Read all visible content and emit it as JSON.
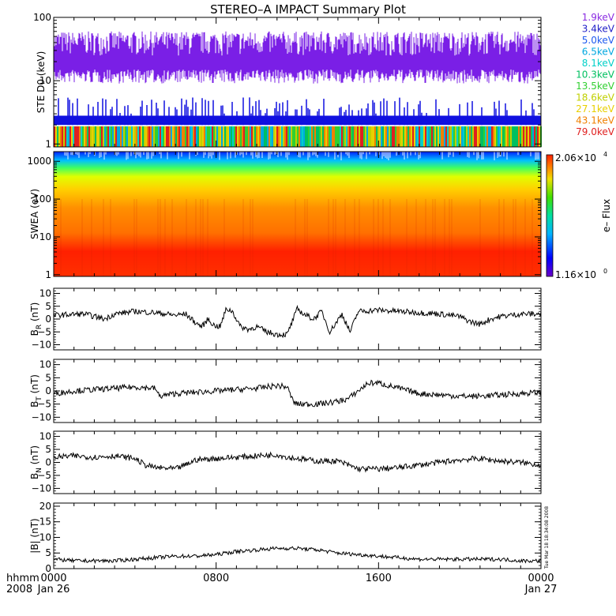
{
  "title": "STEREO–A IMPACT Summary Plot",
  "timestamp": "Tue Mar 18 18:34:08 2008",
  "time_axis": {
    "left_label_1": "hhmm",
    "left_label_2": "2008",
    "ticks": [
      {
        "t": 0,
        "label": "0000",
        "sublabel": "Jan 26"
      },
      {
        "t": 8,
        "label": "0800",
        "sublabel": ""
      },
      {
        "t": 16,
        "label": "1600",
        "sublabel": ""
      },
      {
        "t": 24,
        "label": "0000",
        "sublabel": "Jan 27"
      }
    ]
  },
  "colors": {
    "ste_main": "#7a1fe6",
    "ste_blue": "#1010e0",
    "line": "#000000"
  },
  "chart_data": [
    {
      "panel": "ste",
      "type": "line",
      "ylabel": "STE D0 (keV)",
      "yscale": "log",
      "ylim": [
        0.9,
        100
      ],
      "yticks": [
        {
          "v": 1,
          "label": "1"
        },
        {
          "v": 10,
          "label": "10"
        },
        {
          "v": 100,
          "label": "100"
        }
      ],
      "legend_placement": "right",
      "series": [
        {
          "name": "1.9keV",
          "color": "#8a2be2"
        },
        {
          "name": "3.4keV",
          "color": "#2020c8"
        },
        {
          "name": "5.0keV",
          "color": "#1e5af0"
        },
        {
          "name": "6.5keV",
          "color": "#00a8e0"
        },
        {
          "name": "8.1keV",
          "color": "#00d0c8"
        },
        {
          "name": "10.3keV",
          "color": "#00c060"
        },
        {
          "name": "13.5keV",
          "color": "#30d030"
        },
        {
          "name": "18.6keV",
          "color": "#c0d000"
        },
        {
          "name": "27.1keV",
          "color": "#e8d000"
        },
        {
          "name": "43.1keV",
          "color": "#f08000"
        },
        {
          "name": "79.0keV",
          "color": "#e02020"
        }
      ]
    },
    {
      "panel": "swea",
      "type": "heatmap",
      "ylabel": "SWEA (eV)",
      "yscale": "log",
      "ylim": [
        0.9,
        1800
      ],
      "yticks": [
        {
          "v": 1,
          "label": "1"
        },
        {
          "v": 10,
          "label": "10"
        },
        {
          "v": 100,
          "label": "100"
        },
        {
          "v": 1000,
          "label": "1000"
        }
      ],
      "colorbar": {
        "label": "e– Flux",
        "max_label": "2.06×10",
        "max_exp": "4",
        "min_label": "1.16×10",
        "min_exp": "0"
      }
    },
    {
      "panel": "br",
      "type": "line",
      "ylabel": "B",
      "ylabel_sub": "R",
      "yunit": " (nT)",
      "ylim": [
        -12,
        12
      ],
      "yticks": [
        {
          "v": 10,
          "label": "10"
        },
        {
          "v": 5,
          "label": "5"
        },
        {
          "v": 0,
          "label": "0"
        },
        {
          "v": -5,
          "label": "−5"
        },
        {
          "v": -10,
          "label": "−10"
        }
      ],
      "points": [
        [
          0,
          1.5
        ],
        [
          1.5,
          2
        ],
        [
          2.5,
          0
        ],
        [
          3,
          2
        ],
        [
          4,
          3
        ],
        [
          5,
          2.5
        ],
        [
          6,
          1.5
        ],
        [
          6.5,
          2
        ],
        [
          7,
          -1.5
        ],
        [
          7.3,
          -3
        ],
        [
          7.6,
          0
        ],
        [
          7.9,
          -2.5
        ],
        [
          8.2,
          -3
        ],
        [
          8.5,
          4
        ],
        [
          8.8,
          3
        ],
        [
          9.2,
          -3
        ],
        [
          9.6,
          -4
        ],
        [
          10,
          -3
        ],
        [
          10.5,
          -5
        ],
        [
          11,
          -6
        ],
        [
          11.5,
          -6
        ],
        [
          11.7,
          -2
        ],
        [
          12,
          4
        ],
        [
          12.3,
          2
        ],
        [
          12.8,
          0
        ],
        [
          13.2,
          3
        ],
        [
          13.6,
          -5
        ],
        [
          14.2,
          2
        ],
        [
          14.6,
          -5
        ],
        [
          15,
          3
        ],
        [
          16,
          3.5
        ],
        [
          17,
          3
        ],
        [
          18,
          2.5
        ],
        [
          19,
          2
        ],
        [
          20,
          1
        ],
        [
          20.5,
          -1
        ],
        [
          21,
          -2
        ],
        [
          21.5,
          0
        ],
        [
          22,
          1
        ],
        [
          23,
          2
        ],
        [
          24,
          2
        ]
      ]
    },
    {
      "panel": "bt",
      "type": "line",
      "ylabel": "B",
      "ylabel_sub": "T",
      "yunit": " (nT)",
      "ylim": [
        -12,
        12
      ],
      "yticks": [
        {
          "v": 10,
          "label": "10"
        },
        {
          "v": 5,
          "label": "5"
        },
        {
          "v": 0,
          "label": "0"
        },
        {
          "v": -5,
          "label": "−5"
        },
        {
          "v": -10,
          "label": "−10"
        }
      ],
      "points": [
        [
          0,
          -1
        ],
        [
          1,
          0
        ],
        [
          2,
          0.5
        ],
        [
          3,
          1
        ],
        [
          4,
          1.5
        ],
        [
          5,
          1
        ],
        [
          5.2,
          -2
        ],
        [
          6,
          -1
        ],
        [
          7,
          -0.5
        ],
        [
          8,
          0
        ],
        [
          9,
          0.5
        ],
        [
          10,
          1
        ],
        [
          11,
          2
        ],
        [
          11.5,
          1.5
        ],
        [
          11.8,
          -4
        ],
        [
          12,
          -5
        ],
        [
          13,
          -5
        ],
        [
          14,
          -4
        ],
        [
          14.5,
          -3
        ],
        [
          15,
          0
        ],
        [
          15.5,
          3
        ],
        [
          16,
          3
        ],
        [
          16.5,
          2
        ],
        [
          17,
          1
        ],
        [
          17.5,
          0
        ],
        [
          18,
          -1
        ],
        [
          19,
          -1.5
        ],
        [
          20,
          -2
        ],
        [
          21,
          -2
        ],
        [
          22,
          -1.5
        ],
        [
          23,
          -1
        ],
        [
          24,
          -0.5
        ]
      ]
    },
    {
      "panel": "bn",
      "type": "line",
      "ylabel": "B",
      "ylabel_sub": "N",
      "yunit": " (nT)",
      "ylim": [
        -12,
        12
      ],
      "yticks": [
        {
          "v": 10,
          "label": "10"
        },
        {
          "v": 5,
          "label": "5"
        },
        {
          "v": 0,
          "label": "0"
        },
        {
          "v": -5,
          "label": "−5"
        },
        {
          "v": -10,
          "label": "−10"
        }
      ],
      "points": [
        [
          0,
          2
        ],
        [
          1,
          2.5
        ],
        [
          2,
          2
        ],
        [
          3,
          2.5
        ],
        [
          4,
          1.5
        ],
        [
          4.5,
          -1
        ],
        [
          5,
          -2
        ],
        [
          6,
          -2.5
        ],
        [
          6.5,
          -1
        ],
        [
          7,
          1
        ],
        [
          8,
          1.5
        ],
        [
          9,
          2
        ],
        [
          10,
          2.5
        ],
        [
          11,
          3
        ],
        [
          11.5,
          2
        ],
        [
          12,
          1.5
        ],
        [
          13,
          0.5
        ],
        [
          14,
          0.5
        ],
        [
          14.5,
          -1
        ],
        [
          15,
          -2.5
        ],
        [
          16,
          -2.5
        ],
        [
          17,
          -2
        ],
        [
          18,
          -1
        ],
        [
          19,
          0
        ],
        [
          20,
          1
        ],
        [
          21,
          1.5
        ],
        [
          22,
          0.5
        ],
        [
          23,
          0
        ],
        [
          24,
          -1
        ]
      ]
    },
    {
      "panel": "bmag",
      "type": "line",
      "ylabel": "|B| (nT)",
      "ylim": [
        0,
        21
      ],
      "yticks": [
        {
          "v": 20,
          "label": "20"
        },
        {
          "v": 15,
          "label": "15"
        },
        {
          "v": 10,
          "label": "10"
        },
        {
          "v": 5,
          "label": "5"
        },
        {
          "v": 0,
          "label": "0"
        }
      ],
      "points": [
        [
          0,
          3
        ],
        [
          1,
          2.5
        ],
        [
          2,
          2.5
        ],
        [
          3,
          2.5
        ],
        [
          4,
          3
        ],
        [
          5,
          3.5
        ],
        [
          6,
          4
        ],
        [
          7,
          4
        ],
        [
          8,
          4.5
        ],
        [
          9,
          5.5
        ],
        [
          10,
          6
        ],
        [
          11,
          6.5
        ],
        [
          12,
          6.5
        ],
        [
          13,
          6
        ],
        [
          14,
          5
        ],
        [
          15,
          4.5
        ],
        [
          16,
          4
        ],
        [
          17,
          3.5
        ],
        [
          18,
          3
        ],
        [
          19,
          3
        ],
        [
          20,
          3
        ],
        [
          21,
          3
        ],
        [
          22,
          3
        ],
        [
          23,
          2.5
        ],
        [
          24,
          2.5
        ]
      ]
    }
  ]
}
